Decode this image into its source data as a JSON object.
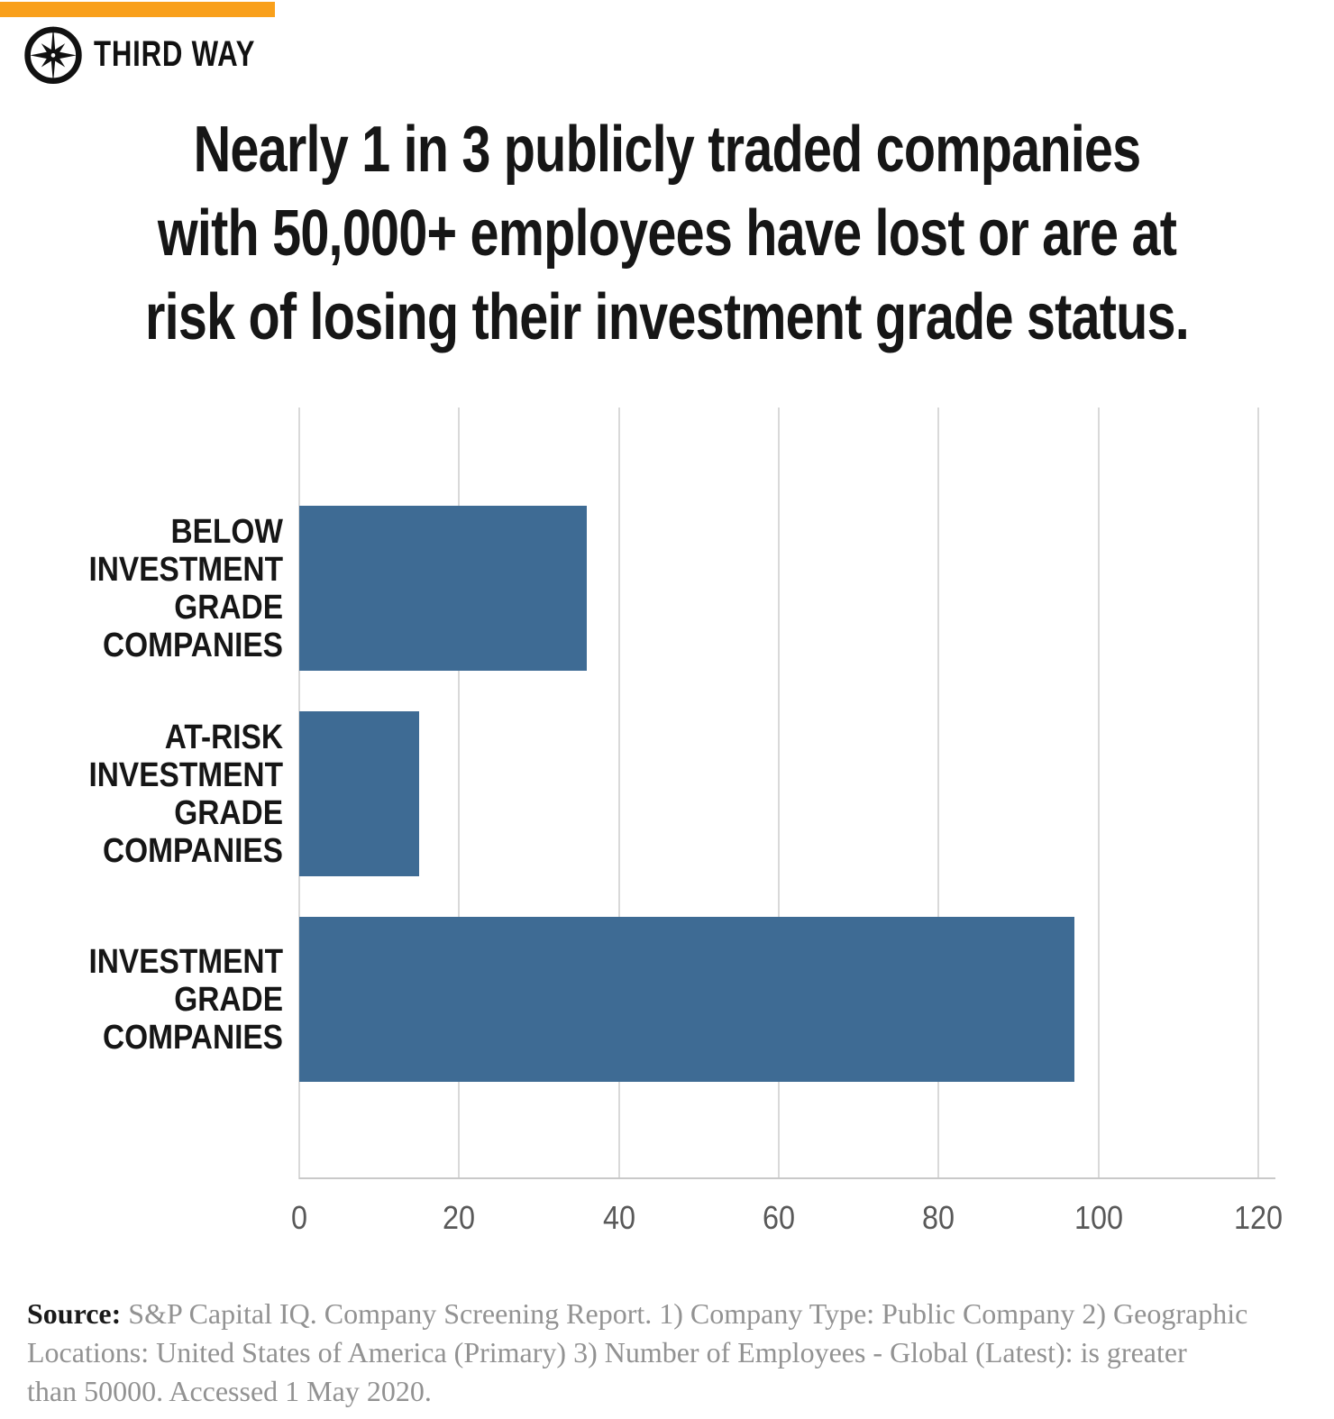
{
  "brand": {
    "logo_text": "THIRD WAY",
    "accent_color": "#F9A01B",
    "icon": "compass-star-icon"
  },
  "title": {
    "text": "Nearly 1 in 3 publicly traded companies\nwith 50,000+ employees have lost or are at\nrisk of losing their investment grade status."
  },
  "chart_data": {
    "type": "bar",
    "orientation": "horizontal",
    "categories": [
      "BELOW\nINVESTMENT\nGRADE\nCOMPANIES",
      "AT-RISK\nINVESTMENT\nGRADE\nCOMPANIES",
      "INVESTMENT\nGRADE\nCOMPANIES"
    ],
    "values": [
      36,
      15,
      97
    ],
    "x_ticks": [
      0,
      20,
      40,
      60,
      80,
      100,
      120
    ],
    "xlim": [
      0,
      120
    ],
    "xlabel": "",
    "ylabel": "",
    "grid": true,
    "legend": false,
    "bar_color": "#3E6B94",
    "gridline_color": "#D9D9D9",
    "tick_label_color": "#595959"
  },
  "source": {
    "label": "Source:",
    "text": " S&P Capital IQ. Company Screening Report. 1) Company Type: Public Company 2) Geographic\nLocations: United States of America (Primary) 3) Number of Employees - Global (Latest): is greater\nthan 50000. Accessed 1 May 2020."
  }
}
